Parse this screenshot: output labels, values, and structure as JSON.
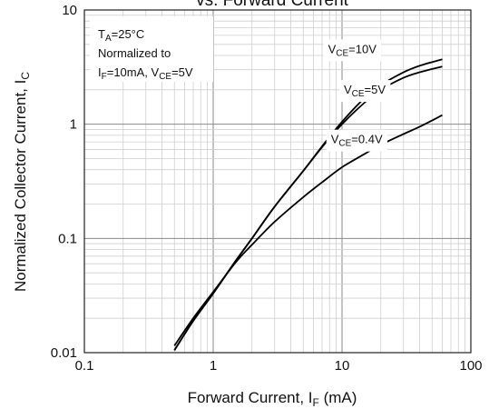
{
  "chart_data": {
    "type": "line",
    "title": "vs. Forward Current",
    "xlabel": {
      "text": "Forward Current, I",
      "sub": "F",
      "suffix": " (mA)"
    },
    "ylabel": {
      "text": "Normalized Collector Current, I",
      "sub": "C"
    },
    "x_scale": "log",
    "y_scale": "log",
    "xlim": [
      0.1,
      100
    ],
    "ylim": [
      0.01,
      10
    ],
    "x_ticks": [
      {
        "v": 0.1,
        "label": "0.1"
      },
      {
        "v": 1,
        "label": "1"
      },
      {
        "v": 10,
        "label": "10"
      },
      {
        "v": 100,
        "label": "100"
      }
    ],
    "y_ticks": [
      {
        "v": 0.01,
        "label": "0.01"
      },
      {
        "v": 0.1,
        "label": "0.1"
      },
      {
        "v": 1,
        "label": "1"
      },
      {
        "v": 10,
        "label": "10"
      }
    ],
    "grid": true,
    "conditions": {
      "line1": {
        "pre": "T",
        "sub": "A",
        "post": "=25°C"
      },
      "line2": "Normalized to",
      "line3": {
        "a": "I",
        "a_sub": "F",
        "b": "=10mA, V",
        "b_sub": "CE",
        "c": "=5V"
      }
    },
    "series": [
      {
        "name": "VCE=10V",
        "label": {
          "pre": "V",
          "sub": "CE",
          "post": "=10V"
        },
        "color": "#000000",
        "x": [
          0.5,
          0.7,
          1,
          1.5,
          2,
          3,
          5,
          7,
          10,
          15,
          20,
          30,
          40,
          60
        ],
        "y": [
          0.0105,
          0.019,
          0.033,
          0.064,
          0.1,
          0.19,
          0.39,
          0.64,
          1.05,
          1.7,
          2.2,
          2.85,
          3.25,
          3.7
        ]
      },
      {
        "name": "VCE=5V",
        "label": {
          "pre": "V",
          "sub": "CE",
          "post": "=5V"
        },
        "color": "#000000",
        "x": [
          0.5,
          0.7,
          1,
          1.5,
          2,
          3,
          5,
          7,
          10,
          15,
          20,
          30,
          40,
          60
        ],
        "y": [
          0.0105,
          0.019,
          0.033,
          0.064,
          0.1,
          0.19,
          0.39,
          0.63,
          1.0,
          1.55,
          2.0,
          2.55,
          2.85,
          3.2
        ]
      },
      {
        "name": "VCE=0.4V",
        "label": {
          "pre": "V",
          "sub": "CE",
          "post": "=0.4V"
        },
        "color": "#000000",
        "x": [
          0.5,
          0.7,
          1,
          1.5,
          2,
          3,
          5,
          7,
          10,
          15,
          20,
          30,
          40,
          60
        ],
        "y": [
          0.0115,
          0.02,
          0.034,
          0.062,
          0.088,
          0.14,
          0.23,
          0.31,
          0.42,
          0.55,
          0.66,
          0.82,
          0.95,
          1.2
        ]
      }
    ]
  }
}
